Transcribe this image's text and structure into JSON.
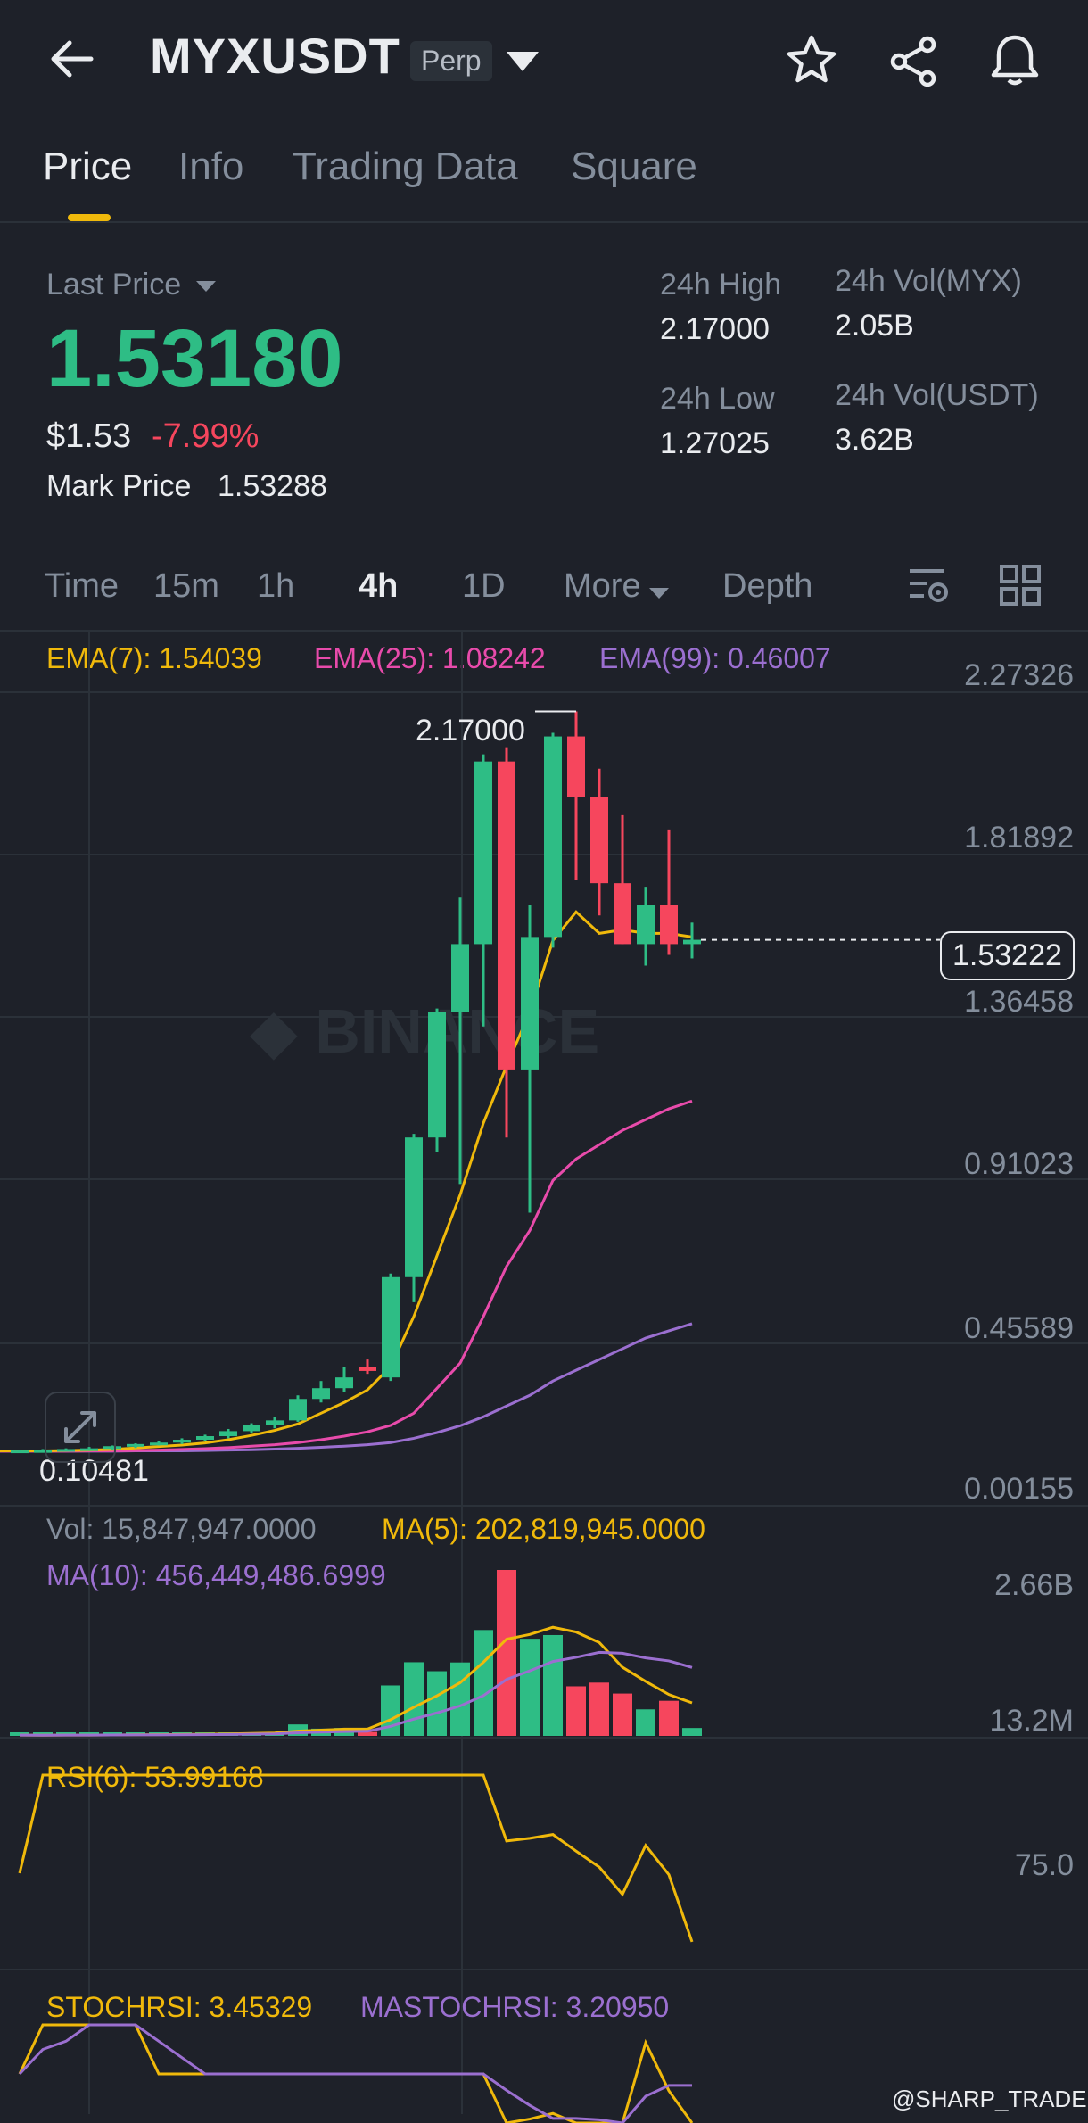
{
  "header": {
    "symbol": "MYXUSDT",
    "badge": "Perp"
  },
  "tabs": [
    {
      "label": "Price",
      "active": true
    },
    {
      "label": "Info"
    },
    {
      "label": "Trading Data"
    },
    {
      "label": "Square"
    }
  ],
  "ticker": {
    "last_price_label": "Last Price",
    "last_price": "1.53180",
    "usd_price": "$1.53",
    "change": "-7.99%",
    "mark_price_label": "Mark Price",
    "mark_price": "1.53288",
    "high_label": "24h High",
    "high": "2.17000",
    "low_label": "24h Low",
    "low": "1.27025",
    "vol_base_label": "24h Vol(MYX)",
    "vol_base": "2.05B",
    "vol_quote_label": "24h Vol(USDT)",
    "vol_quote": "3.62B"
  },
  "intervals": [
    "Time",
    "15m",
    "1h",
    "4h",
    "1D",
    "More",
    "Depth"
  ],
  "active_interval": "4h",
  "indicators": {
    "ema7": "EMA(7): 1.54039",
    "ema25": "EMA(25): 1.08242",
    "ema99": "EMA(99): 0.46007",
    "vol": "Vol: 15,847,947.0000",
    "ma5": "MA(5): 202,819,945.0000",
    "ma10": "MA(10): 456,449,486.6999",
    "rsi": "RSI(6): 53.99168",
    "stochrsi": "STOCHRSI: 3.45329",
    "mastochrsi": "MASTOCHRSI: 3.20950"
  },
  "price_axis": [
    "2.27326",
    "1.81892",
    "1.36458",
    "0.91023",
    "0.45589",
    "0.00155"
  ],
  "current_price_tag": "1.53222",
  "high_marker": "2.17000",
  "low_marker": "0.10481",
  "vol_axis": [
    "2.66B",
    "13.2M"
  ],
  "rsi_axis": "75.0",
  "watermark": "@SHARP_TRADER",
  "colors": {
    "up": "#2ebd85",
    "down": "#f6465d",
    "accent": "#f0b90b",
    "ema25": "#e84bab",
    "ema99": "#9b6fd0"
  },
  "chart_data": {
    "type": "candlestick",
    "interval": "4h",
    "ylim": [
      0.00155,
      2.27326
    ],
    "candles": [
      {
        "o": 0.104,
        "h": 0.108,
        "l": 0.1,
        "c": 0.106
      },
      {
        "o": 0.106,
        "h": 0.11,
        "l": 0.102,
        "c": 0.107
      },
      {
        "o": 0.107,
        "h": 0.112,
        "l": 0.104,
        "c": 0.11
      },
      {
        "o": 0.11,
        "h": 0.116,
        "l": 0.106,
        "c": 0.112
      },
      {
        "o": 0.112,
        "h": 0.12,
        "l": 0.108,
        "c": 0.118
      },
      {
        "o": 0.118,
        "h": 0.126,
        "l": 0.113,
        "c": 0.124
      },
      {
        "o": 0.124,
        "h": 0.132,
        "l": 0.12,
        "c": 0.128
      },
      {
        "o": 0.128,
        "h": 0.14,
        "l": 0.124,
        "c": 0.136
      },
      {
        "o": 0.136,
        "h": 0.15,
        "l": 0.132,
        "c": 0.146
      },
      {
        "o": 0.146,
        "h": 0.166,
        "l": 0.14,
        "c": 0.16
      },
      {
        "o": 0.16,
        "h": 0.182,
        "l": 0.155,
        "c": 0.176
      },
      {
        "o": 0.176,
        "h": 0.2,
        "l": 0.168,
        "c": 0.19
      },
      {
        "o": 0.19,
        "h": 0.26,
        "l": 0.186,
        "c": 0.25
      },
      {
        "o": 0.25,
        "h": 0.3,
        "l": 0.24,
        "c": 0.28
      },
      {
        "o": 0.28,
        "h": 0.34,
        "l": 0.27,
        "c": 0.31
      },
      {
        "o": 0.34,
        "h": 0.36,
        "l": 0.32,
        "c": 0.328
      },
      {
        "o": 0.31,
        "h": 0.6,
        "l": 0.3,
        "c": 0.59
      },
      {
        "o": 0.59,
        "h": 0.99,
        "l": 0.52,
        "c": 0.98
      },
      {
        "o": 0.98,
        "h": 1.34,
        "l": 0.94,
        "c": 1.33
      },
      {
        "o": 1.33,
        "h": 1.65,
        "l": 0.85,
        "c": 1.52
      },
      {
        "o": 1.52,
        "h": 2.05,
        "l": 1.29,
        "c": 2.03
      },
      {
        "o": 2.03,
        "h": 2.07,
        "l": 0.98,
        "c": 1.17
      },
      {
        "o": 1.17,
        "h": 1.63,
        "l": 0.77,
        "c": 1.54
      },
      {
        "o": 1.54,
        "h": 2.11,
        "l": 1.51,
        "c": 2.1
      },
      {
        "o": 2.1,
        "h": 2.17,
        "l": 1.7,
        "c": 1.93
      },
      {
        "o": 1.93,
        "h": 2.01,
        "l": 1.6,
        "c": 1.69
      },
      {
        "o": 1.69,
        "h": 1.88,
        "l": 1.52,
        "c": 1.52
      },
      {
        "o": 1.52,
        "h": 1.68,
        "l": 1.46,
        "c": 1.63
      },
      {
        "o": 1.63,
        "h": 1.84,
        "l": 1.49,
        "c": 1.52
      },
      {
        "o": 1.52,
        "h": 1.58,
        "l": 1.48,
        "c": 1.532
      }
    ],
    "ema7": [
      0.105,
      0.105,
      0.106,
      0.107,
      0.109,
      0.113,
      0.117,
      0.121,
      0.127,
      0.136,
      0.148,
      0.162,
      0.18,
      0.21,
      0.24,
      0.275,
      0.34,
      0.48,
      0.65,
      0.82,
      1.02,
      1.18,
      1.33,
      1.53,
      1.61,
      1.55,
      1.56,
      1.55,
      1.55,
      1.54
    ],
    "ema25": [
      0.104,
      0.104,
      0.104,
      0.105,
      0.105,
      0.106,
      0.107,
      0.109,
      0.111,
      0.114,
      0.118,
      0.122,
      0.128,
      0.136,
      0.146,
      0.158,
      0.176,
      0.21,
      0.28,
      0.35,
      0.48,
      0.62,
      0.72,
      0.86,
      0.92,
      0.96,
      1.0,
      1.03,
      1.06,
      1.082
    ],
    "ema99": [
      0.104,
      0.104,
      0.104,
      0.104,
      0.104,
      0.105,
      0.105,
      0.105,
      0.106,
      0.107,
      0.108,
      0.11,
      0.112,
      0.115,
      0.118,
      0.122,
      0.128,
      0.14,
      0.156,
      0.175,
      0.2,
      0.23,
      0.26,
      0.3,
      0.33,
      0.36,
      0.39,
      0.42,
      0.44,
      0.46
    ],
    "volume_axis": [
      "2.66B",
      "13.2M"
    ],
    "rsi_axis": [
      "75.0"
    ]
  }
}
